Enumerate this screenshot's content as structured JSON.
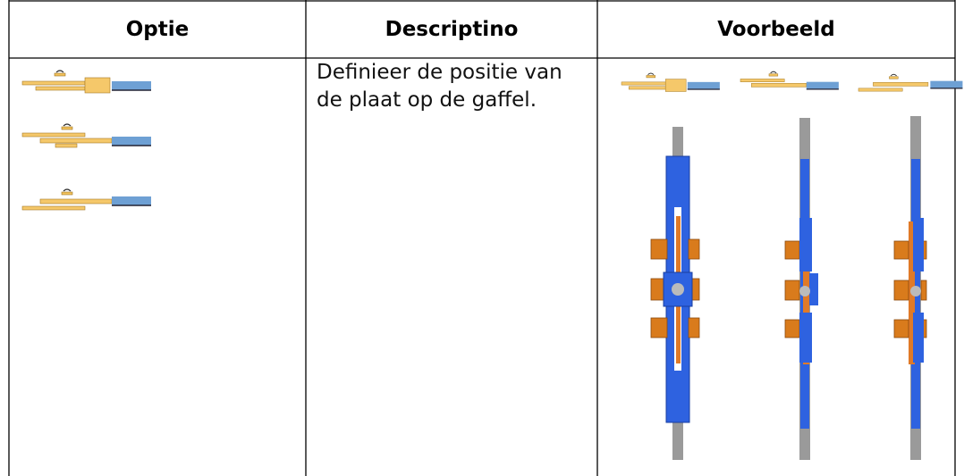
{
  "table": {
    "columns": [
      "Optie",
      "Descriptino",
      "Voorbeeld"
    ],
    "rows": [
      {
        "description": "Definieer de positie van de plaat op de gaffel."
      }
    ]
  }
}
